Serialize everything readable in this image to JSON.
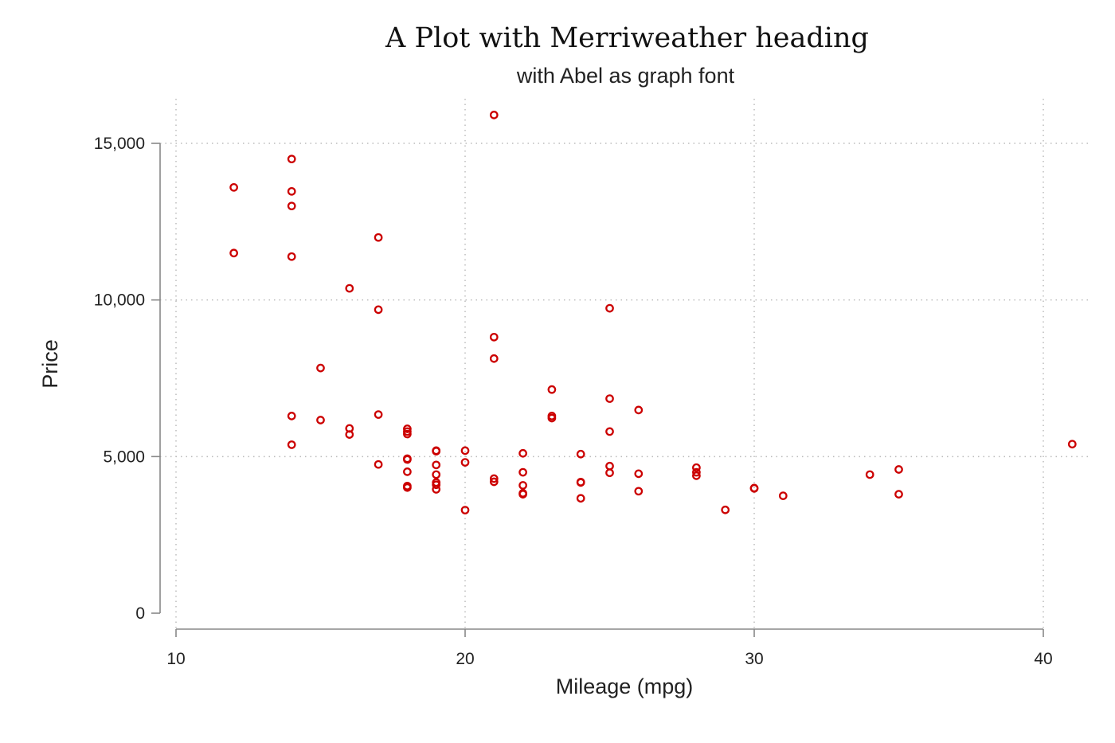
{
  "chart_data": {
    "type": "scatter",
    "title": "A Plot with Merriweather heading",
    "subtitle": "with Abel as graph font",
    "xlabel": "Mileage (mpg)",
    "ylabel": "Price",
    "xlim": [
      10,
      41.6
    ],
    "ylim": [
      -500,
      16500
    ],
    "xticks": [
      10,
      20,
      30,
      40
    ],
    "xtick_labels": [
      "10",
      "20",
      "30",
      "40"
    ],
    "yticks": [
      0,
      5000,
      10000,
      15000
    ],
    "ytick_labels": [
      "0",
      "5,000",
      "10,000",
      "15,000"
    ],
    "grid": true,
    "marker": "hollow-circle",
    "marker_color": "#cc0000",
    "points": [
      [
        12,
        13594
      ],
      [
        12,
        11497
      ],
      [
        14,
        14500
      ],
      [
        14,
        13466
      ],
      [
        14,
        13000
      ],
      [
        14,
        11385
      ],
      [
        14,
        6295
      ],
      [
        14,
        5379
      ],
      [
        15,
        7827
      ],
      [
        15,
        6165
      ],
      [
        16,
        10371
      ],
      [
        16,
        5899
      ],
      [
        16,
        5705
      ],
      [
        17,
        11995
      ],
      [
        17,
        9690
      ],
      [
        17,
        6342
      ],
      [
        17,
        4749
      ],
      [
        18,
        5886
      ],
      [
        18,
        5798
      ],
      [
        18,
        5719
      ],
      [
        18,
        4934
      ],
      [
        18,
        4906
      ],
      [
        18,
        4516
      ],
      [
        18,
        4060
      ],
      [
        18,
        4010
      ],
      [
        19,
        5189
      ],
      [
        19,
        5172
      ],
      [
        19,
        4733
      ],
      [
        19,
        4425
      ],
      [
        19,
        4172
      ],
      [
        19,
        4099
      ],
      [
        19,
        3955
      ],
      [
        20,
        5189
      ],
      [
        20,
        4816
      ],
      [
        20,
        3291
      ],
      [
        21,
        15906
      ],
      [
        21,
        8814
      ],
      [
        21,
        8129
      ],
      [
        21,
        4296
      ],
      [
        21,
        4195
      ],
      [
        22,
        5104
      ],
      [
        22,
        4499
      ],
      [
        22,
        4082
      ],
      [
        22,
        3829
      ],
      [
        22,
        3798
      ],
      [
        23,
        7140
      ],
      [
        23,
        6295
      ],
      [
        23,
        6229
      ],
      [
        24,
        5079
      ],
      [
        24,
        4187
      ],
      [
        24,
        4172
      ],
      [
        24,
        3667
      ],
      [
        25,
        9735
      ],
      [
        25,
        6850
      ],
      [
        25,
        5799
      ],
      [
        25,
        4697
      ],
      [
        25,
        4482
      ],
      [
        26,
        6486
      ],
      [
        26,
        4453
      ],
      [
        26,
        3895
      ],
      [
        28,
        4647
      ],
      [
        28,
        4499
      ],
      [
        28,
        4389
      ],
      [
        29,
        3299
      ],
      [
        30,
        3995
      ],
      [
        30,
        3984
      ],
      [
        31,
        3748
      ],
      [
        34,
        4425
      ],
      [
        35,
        4589
      ],
      [
        35,
        3798
      ],
      [
        41,
        5397
      ]
    ]
  }
}
